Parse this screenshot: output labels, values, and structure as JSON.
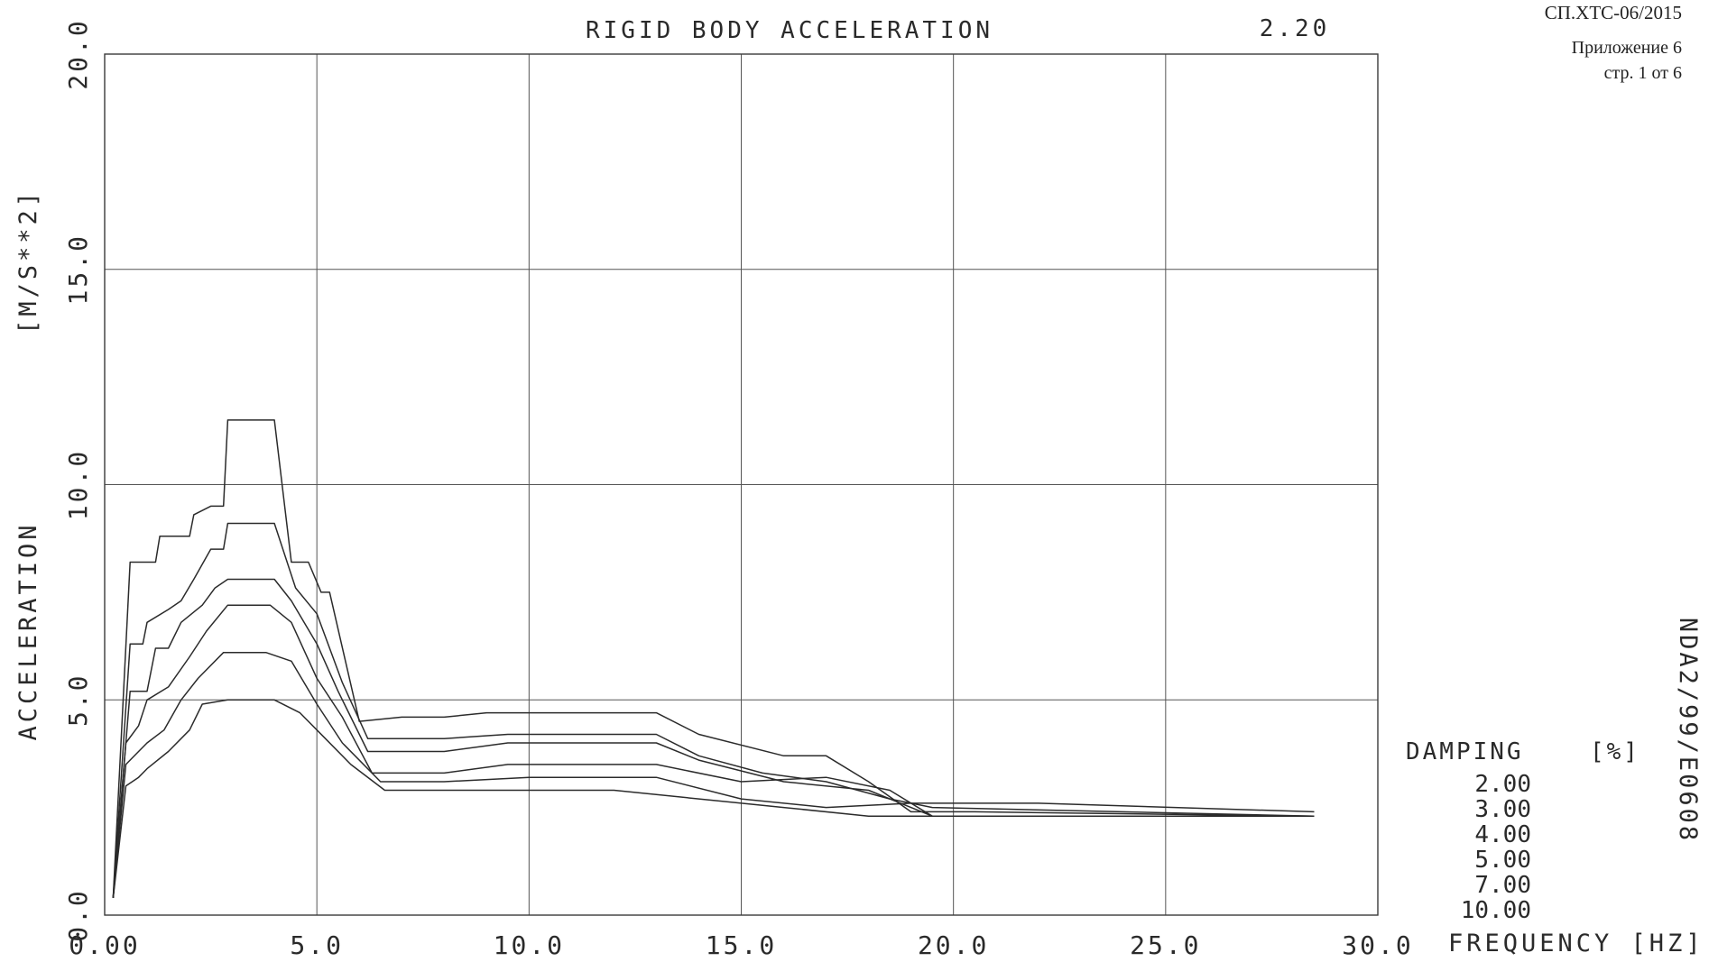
{
  "doc": {
    "code": "СП.ХТС-06/2015",
    "appendix": "Приложение 6",
    "page": "стр. 1 от 6",
    "side_id": "NDA2/99/E0608"
  },
  "chart_data": {
    "type": "line",
    "title": "RIGID BODY ACCELERATION",
    "title_value": "2.20",
    "xlabel": "FREQUENCY [HZ]",
    "ylabel": "ACCELERATION",
    "yunit": "[M/S**2]",
    "xlim": [
      0,
      30
    ],
    "ylim": [
      0,
      20
    ],
    "x_ticks": [
      "0.00",
      "5.0",
      "10.0",
      "15.0",
      "20.0",
      "25.0",
      "30.0"
    ],
    "y_ticks": [
      "0.0",
      "5.0",
      "10.0",
      "15.0",
      "20.0"
    ],
    "grid": true,
    "legend": {
      "title": "DAMPING",
      "unit": "[%]",
      "position": "bottom-right",
      "entries": [
        "2.00",
        "3.00",
        "4.00",
        "5.00",
        "7.00",
        "10.00"
      ]
    },
    "series": [
      {
        "name": "2.00",
        "points": [
          [
            0.2,
            0.4
          ],
          [
            0.6,
            8.2
          ],
          [
            1.2,
            8.2
          ],
          [
            1.3,
            8.8
          ],
          [
            2.0,
            8.8
          ],
          [
            2.1,
            9.3
          ],
          [
            2.5,
            9.5
          ],
          [
            2.8,
            9.5
          ],
          [
            2.9,
            11.5
          ],
          [
            4.0,
            11.5
          ],
          [
            4.4,
            8.2
          ],
          [
            4.8,
            8.2
          ],
          [
            5.1,
            7.5
          ],
          [
            5.3,
            7.5
          ],
          [
            6.0,
            4.5
          ],
          [
            7.0,
            4.6
          ],
          [
            8.0,
            4.6
          ],
          [
            9.0,
            4.7
          ],
          [
            11.0,
            4.7
          ],
          [
            13.0,
            4.7
          ],
          [
            14.0,
            4.2
          ],
          [
            16.0,
            3.7
          ],
          [
            17.0,
            3.7
          ],
          [
            18.0,
            3.1
          ],
          [
            19.0,
            2.4
          ],
          [
            20.5,
            2.4
          ],
          [
            28.5,
            2.3
          ]
        ]
      },
      {
        "name": "3.00",
        "points": [
          [
            0.2,
            0.4
          ],
          [
            0.6,
            6.3
          ],
          [
            0.9,
            6.3
          ],
          [
            1.0,
            6.8
          ],
          [
            1.5,
            7.1
          ],
          [
            1.8,
            7.3
          ],
          [
            2.1,
            7.8
          ],
          [
            2.5,
            8.5
          ],
          [
            2.8,
            8.5
          ],
          [
            2.9,
            9.1
          ],
          [
            4.0,
            9.1
          ],
          [
            4.5,
            7.6
          ],
          [
            5.0,
            7.0
          ],
          [
            5.6,
            5.4
          ],
          [
            6.2,
            4.1
          ],
          [
            8.0,
            4.1
          ],
          [
            9.5,
            4.2
          ],
          [
            12.0,
            4.2
          ],
          [
            13.0,
            4.2
          ],
          [
            14.0,
            3.7
          ],
          [
            15.5,
            3.3
          ],
          [
            17.0,
            3.1
          ],
          [
            18.5,
            2.7
          ],
          [
            19.5,
            2.5
          ],
          [
            28.5,
            2.3
          ]
        ]
      },
      {
        "name": "4.00",
        "points": [
          [
            0.2,
            0.4
          ],
          [
            0.6,
            5.2
          ],
          [
            1.0,
            5.2
          ],
          [
            1.2,
            6.2
          ],
          [
            1.5,
            6.2
          ],
          [
            1.8,
            6.8
          ],
          [
            2.3,
            7.2
          ],
          [
            2.6,
            7.6
          ],
          [
            2.9,
            7.8
          ],
          [
            4.0,
            7.8
          ],
          [
            4.4,
            7.3
          ],
          [
            5.0,
            6.3
          ],
          [
            5.5,
            5.2
          ],
          [
            6.2,
            3.8
          ],
          [
            8.0,
            3.8
          ],
          [
            9.5,
            4.0
          ],
          [
            13.0,
            4.0
          ],
          [
            14.0,
            3.6
          ],
          [
            16.0,
            3.1
          ],
          [
            18.0,
            2.9
          ],
          [
            19.5,
            2.3
          ],
          [
            28.5,
            2.3
          ]
        ]
      },
      {
        "name": "5.00",
        "points": [
          [
            0.2,
            0.4
          ],
          [
            0.5,
            4.0
          ],
          [
            0.8,
            4.4
          ],
          [
            1.0,
            5.0
          ],
          [
            1.5,
            5.3
          ],
          [
            2.0,
            6.0
          ],
          [
            2.4,
            6.6
          ],
          [
            2.9,
            7.2
          ],
          [
            3.9,
            7.2
          ],
          [
            4.4,
            6.8
          ],
          [
            5.0,
            5.5
          ],
          [
            5.6,
            4.6
          ],
          [
            6.3,
            3.3
          ],
          [
            8.0,
            3.3
          ],
          [
            9.5,
            3.5
          ],
          [
            13.0,
            3.5
          ],
          [
            15.0,
            3.1
          ],
          [
            17.0,
            3.2
          ],
          [
            18.5,
            2.9
          ],
          [
            19.5,
            2.3
          ],
          [
            28.5,
            2.3
          ]
        ]
      },
      {
        "name": "7.00",
        "points": [
          [
            0.2,
            0.4
          ],
          [
            0.5,
            3.5
          ],
          [
            0.8,
            3.8
          ],
          [
            1.0,
            4.0
          ],
          [
            1.4,
            4.3
          ],
          [
            1.8,
            5.0
          ],
          [
            2.2,
            5.5
          ],
          [
            2.8,
            6.1
          ],
          [
            3.8,
            6.1
          ],
          [
            4.4,
            5.9
          ],
          [
            5.0,
            4.9
          ],
          [
            5.6,
            4.0
          ],
          [
            6.5,
            3.1
          ],
          [
            8.0,
            3.1
          ],
          [
            10.0,
            3.2
          ],
          [
            13.0,
            3.2
          ],
          [
            15.0,
            2.7
          ],
          [
            17.0,
            2.5
          ],
          [
            19.0,
            2.6
          ],
          [
            22.0,
            2.6
          ],
          [
            28.5,
            2.4
          ]
        ]
      },
      {
        "name": "10.00",
        "points": [
          [
            0.2,
            0.4
          ],
          [
            0.5,
            3.0
          ],
          [
            0.8,
            3.2
          ],
          [
            1.0,
            3.4
          ],
          [
            1.5,
            3.8
          ],
          [
            2.0,
            4.3
          ],
          [
            2.3,
            4.9
          ],
          [
            2.9,
            5.0
          ],
          [
            4.0,
            5.0
          ],
          [
            4.6,
            4.7
          ],
          [
            5.2,
            4.1
          ],
          [
            5.8,
            3.5
          ],
          [
            6.6,
            2.9
          ],
          [
            9.0,
            2.9
          ],
          [
            12.0,
            2.9
          ],
          [
            14.0,
            2.7
          ],
          [
            16.0,
            2.5
          ],
          [
            18.0,
            2.3
          ],
          [
            20.0,
            2.3
          ],
          [
            28.5,
            2.3
          ]
        ]
      }
    ]
  }
}
